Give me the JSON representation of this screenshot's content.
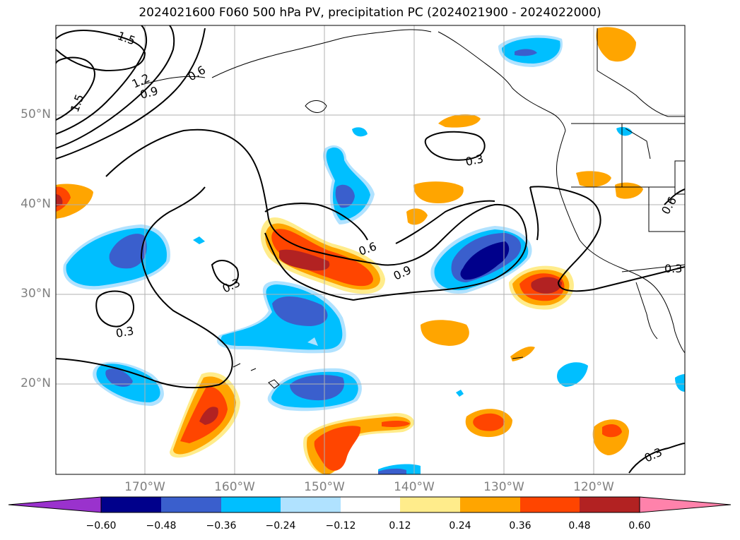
{
  "title": "2024021600 F060 500 hPa PV, precipitation PC (2024021900 - 2024022000)",
  "lat_labels": [
    "50°N",
    "40°N",
    "30°N",
    "20°N"
  ],
  "lon_labels": [
    "170°W",
    "160°W",
    "150°W",
    "140°W",
    "130°W",
    "120°W"
  ],
  "contour_labels": [
    "1.5",
    "1.2",
    "0.9",
    "0.6",
    "1.5",
    "0.3",
    "0.6",
    "0.9",
    "0.3",
    "0.3",
    "0.6",
    "0.3",
    "0.3"
  ],
  "colorbar": {
    "ticks": [
      "−0.60",
      "−0.48",
      "−0.36",
      "−0.24",
      "−0.12",
      "0.12",
      "0.24",
      "0.36",
      "0.48",
      "0.60"
    ],
    "colors": [
      "#9a32cd",
      "#00008b",
      "#3a5fcd",
      "#00bfff",
      "#b0e2ff",
      "#ffffff",
      "#ffec8b",
      "#ffa500",
      "#ff4500",
      "#b22222",
      "#ff82ab"
    ],
    "extend": "both"
  },
  "map": {
    "extent_lon": [
      -180,
      -110
    ],
    "extent_lat": [
      10,
      60
    ],
    "gridlines": true
  }
}
